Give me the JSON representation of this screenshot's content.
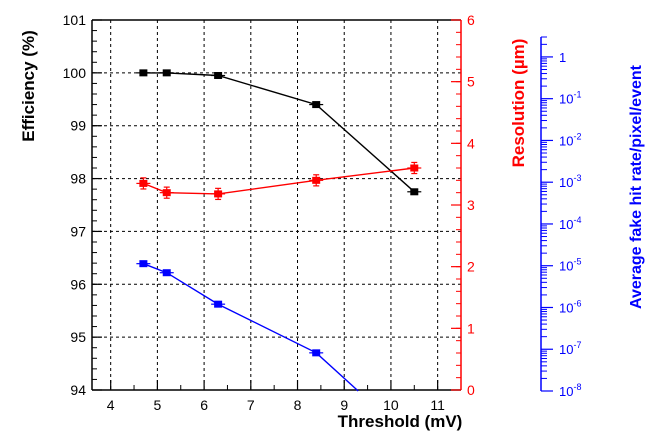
{
  "chart_data": {
    "type": "line",
    "x_axis": {
      "label": "Threshold (mV)",
      "range": [
        3.6,
        11.5
      ],
      "ticks": [
        "4",
        "5",
        "6",
        "7",
        "8",
        "9",
        "10",
        "11"
      ]
    },
    "axes": {
      "efficiency": {
        "label": "Efficiency (%)",
        "range": [
          94,
          101
        ],
        "ticks": [
          "94",
          "95",
          "96",
          "97",
          "98",
          "99",
          "100",
          "101"
        ],
        "color": "#000000"
      },
      "resolution": {
        "label": "Resolution (µm)",
        "range": [
          0,
          6
        ],
        "ticks": [
          "0",
          "1",
          "2",
          "3",
          "4",
          "5",
          "6"
        ],
        "color": "#ff0000"
      },
      "fake_rate": {
        "label": "Average fake hit rate/pixel/event",
        "scale": "log",
        "range": [
          1e-08,
          3
        ],
        "tick_labels": [
          {
            "value": 1,
            "base": "1",
            "exp": ""
          },
          {
            "value": 0.1,
            "base": "10",
            "exp": "-1"
          },
          {
            "value": 0.01,
            "base": "10",
            "exp": "-2"
          },
          {
            "value": 0.001,
            "base": "10",
            "exp": "-3"
          },
          {
            "value": 0.0001,
            "base": "10",
            "exp": "-4"
          },
          {
            "value": 1e-05,
            "base": "10",
            "exp": "-5"
          },
          {
            "value": 1e-06,
            "base": "10",
            "exp": "-6"
          },
          {
            "value": 1e-07,
            "base": "10",
            "exp": "-7"
          },
          {
            "value": 1e-08,
            "base": "10",
            "exp": "-8"
          }
        ],
        "color": "#0000ff"
      }
    },
    "series": [
      {
        "axis": "efficiency",
        "color": "#000000",
        "x": [
          4.7,
          5.2,
          6.3,
          8.4,
          10.5
        ],
        "y": [
          100.0,
          100.0,
          99.95,
          99.4,
          97.75
        ],
        "err": [
          0.02,
          0.02,
          0.03,
          0.04,
          0.05
        ]
      },
      {
        "axis": "resolution",
        "color": "#ff0000",
        "x": [
          4.7,
          5.2,
          6.3,
          8.4,
          10.5
        ],
        "y": [
          3.35,
          3.2,
          3.18,
          3.4,
          3.6
        ],
        "err": [
          0.09,
          0.09,
          0.09,
          0.09,
          0.09
        ]
      },
      {
        "axis": "fake_rate",
        "color": "#0000ff",
        "x": [
          4.7,
          5.2,
          6.3,
          8.4,
          9.3
        ],
        "y": [
          1.12e-05,
          6.8e-06,
          1.2e-06,
          8.2e-08,
          1e-08
        ],
        "markers": [
          true,
          true,
          true,
          true,
          false
        ]
      }
    ],
    "grid": true
  }
}
